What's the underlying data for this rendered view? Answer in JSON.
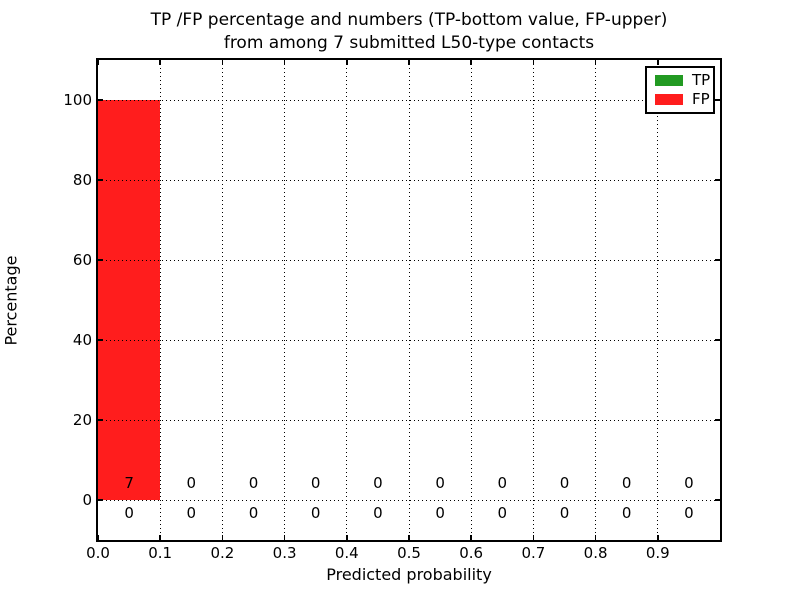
{
  "figure": {
    "title_line1": "TP /FP percentage and numbers (TP-bottom value, FP-upper)",
    "title_line2": "from among 7 submitted L50-type contacts",
    "xlabel": "Predicted probability",
    "ylabel": "Percentage"
  },
  "legend": {
    "position": "upper right",
    "items": [
      {
        "label": "TP",
        "color": "#229a22"
      },
      {
        "label": "FP",
        "color": "#ff1d1d"
      }
    ]
  },
  "chart_data": {
    "type": "bar",
    "title": "TP /FP percentage and numbers (TP-bottom value, FP-upper) from among 7 submitted L50-type contacts",
    "xlabel": "Predicted probability",
    "ylabel": "Percentage",
    "xlim": [
      0.0,
      1.0
    ],
    "ylim": [
      -10,
      110
    ],
    "grid": true,
    "grid_style": "dotted",
    "x_tick_labels": [
      "0.0",
      "0.1",
      "0.2",
      "0.3",
      "0.4",
      "0.5",
      "0.6",
      "0.7",
      "0.8",
      "0.9"
    ],
    "x_tick_values": [
      0.0,
      0.1,
      0.2,
      0.3,
      0.4,
      0.5,
      0.6,
      0.7,
      0.8,
      0.9
    ],
    "y_tick_values": [
      0,
      20,
      40,
      60,
      80,
      100
    ],
    "bin_width": 0.1,
    "bin_starts": [
      0.0,
      0.1,
      0.2,
      0.3,
      0.4,
      0.5,
      0.6,
      0.7,
      0.8,
      0.9
    ],
    "series": [
      {
        "name": "TP",
        "color": "#229a22",
        "percent": [
          0,
          0,
          0,
          0,
          0,
          0,
          0,
          0,
          0,
          0
        ],
        "counts": [
          0,
          0,
          0,
          0,
          0,
          0,
          0,
          0,
          0,
          0
        ]
      },
      {
        "name": "FP",
        "color": "#ff1d1d",
        "percent": [
          100,
          0,
          0,
          0,
          0,
          0,
          0,
          0,
          0,
          0
        ],
        "counts": [
          7,
          0,
          0,
          0,
          0,
          0,
          0,
          0,
          0,
          0
        ]
      }
    ],
    "count_annotations": {
      "upper_row_fp": [
        7,
        0,
        0,
        0,
        0,
        0,
        0,
        0,
        0,
        0
      ],
      "lower_row_tp": [
        0,
        0,
        0,
        0,
        0,
        0,
        0,
        0,
        0,
        0
      ]
    }
  }
}
